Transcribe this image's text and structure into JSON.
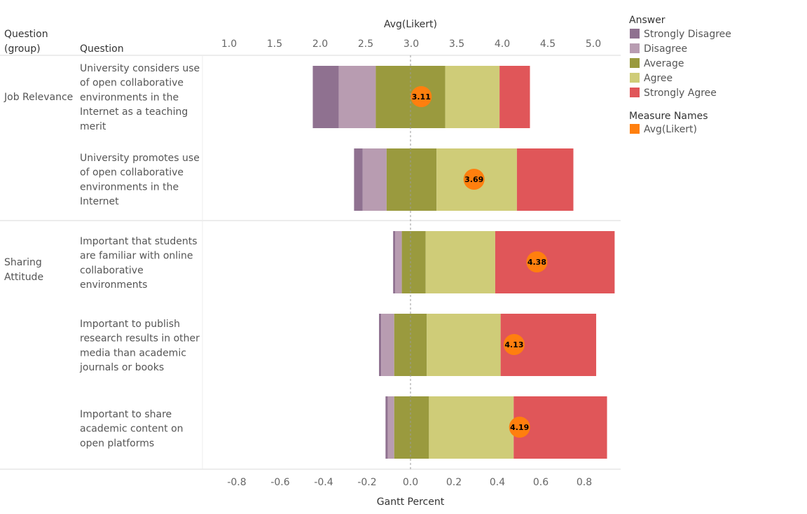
{
  "headers": {
    "question_group": [
      "Question",
      "(group)"
    ],
    "question": "Question"
  },
  "legend": {
    "answer_title": "Answer",
    "answer_items": [
      {
        "label": "Strongly Disagree",
        "color": "#8f7190"
      },
      {
        "label": "Disagree",
        "color": "#b89cb1"
      },
      {
        "label": "Average",
        "color": "#9a9a3e"
      },
      {
        "label": "Agree",
        "color": "#cfcc78"
      },
      {
        "label": "Strongly Agree",
        "color": "#e05659"
      }
    ],
    "measure_title": "Measure Names",
    "measure_items": [
      {
        "label": "Avg(Likert)",
        "color": "#ff7f0e"
      }
    ]
  },
  "chart_data": {
    "type": "bar",
    "stacked": "diverging",
    "title": "",
    "top_axis": {
      "label": "Avg(Likert)",
      "ticks": [
        "1.0",
        "1.5",
        "2.0",
        "2.5",
        "3.0",
        "3.5",
        "4.0",
        "4.5",
        "5.0"
      ],
      "range": [
        1.0,
        5.0
      ]
    },
    "bottom_axis": {
      "label": "Gantt Percent",
      "ticks": [
        "-0.8",
        "-0.6",
        "-0.4",
        "-0.2",
        "0.0",
        "0.2",
        "0.4",
        "0.6",
        "0.8"
      ],
      "range": [
        -0.8,
        0.8
      ]
    },
    "categories": [
      "Strongly Disagree",
      "Disagree",
      "Average",
      "Agree",
      "Strongly Agree"
    ],
    "groups": [
      {
        "name": "Job Relevance",
        "rows": [
          {
            "question": [
              "University considers use",
              "of open collaborative",
              "environments in the",
              "Internet as a teaching",
              "merit"
            ],
            "values": [
              0.12,
              0.17,
              0.32,
              0.25,
              0.14
            ],
            "start": -0.45,
            "avg": 3.11,
            "avg_label": "3.11"
          },
          {
            "question": [
              "University promotes use",
              "of open collaborative",
              "environments in the",
              "Internet"
            ],
            "values": [
              0.04,
              0.11,
              0.23,
              0.37,
              0.26
            ],
            "start": -0.26,
            "avg": 3.69,
            "avg_label": "3.69"
          }
        ]
      },
      {
        "name": "Sharing Attitude",
        "rows": [
          {
            "question": [
              "Important that students",
              "are familiar with online",
              "collaborative",
              "environments"
            ],
            "values": [
              0.01,
              0.03,
              0.11,
              0.32,
              0.55
            ],
            "start": -0.08,
            "avg": 4.38,
            "avg_label": "4.38"
          },
          {
            "question": [
              "Important to publish",
              "research results in other",
              "media than academic",
              "journals or books"
            ],
            "values": [
              0.01,
              0.06,
              0.15,
              0.34,
              0.44
            ],
            "start": -0.145,
            "avg": 4.13,
            "avg_label": "4.13"
          },
          {
            "question": [
              "Important to share",
              "academic content on",
              "open platforms"
            ],
            "values": [
              0.01,
              0.03,
              0.16,
              0.39,
              0.43
            ],
            "start": -0.115,
            "avg": 4.19,
            "avg_label": "4.19"
          }
        ]
      }
    ]
  }
}
